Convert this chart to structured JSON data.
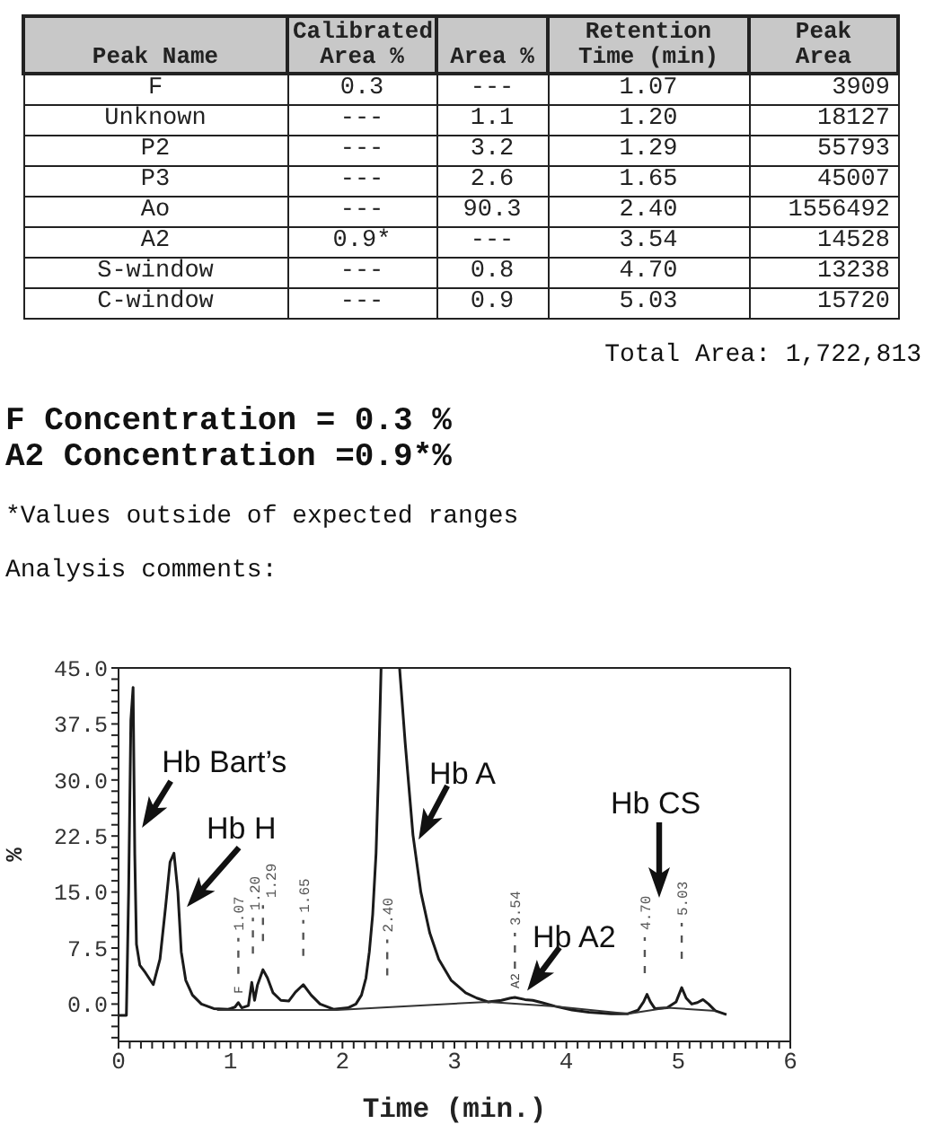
{
  "chart_data": [
    {
      "type": "other",
      "categories": [
        "Peak Name",
        "Calibrated\nArea %",
        "Area %",
        "Retention\nTime (min)",
        "Peak\nArea"
      ],
      "cell_labels": [
        [
          "F",
          "0.3",
          "---",
          "1.07",
          "3909"
        ],
        [
          "Unknown",
          "---",
          "1.1",
          "1.20",
          "18127"
        ],
        [
          "P2",
          "---",
          "3.2",
          "1.29",
          "55793"
        ],
        [
          "P3",
          "---",
          "2.6",
          "1.65",
          "45007"
        ],
        [
          "Ao",
          "---",
          "90.3",
          "2.40",
          "1556492"
        ],
        [
          "A2",
          "0.9*",
          "---",
          "3.54",
          "14528"
        ],
        [
          "S-window",
          "---",
          "0.8",
          "4.70",
          "13238"
        ],
        [
          "C-window",
          "---",
          "0.9",
          "5.03",
          "15720"
        ]
      ],
      "annotations": [
        "Total Area: 1,722,813",
        "F Concentration = 0.3 %",
        "A2 Concentration =0.9*%",
        "*Values outside of expected ranges",
        "Analysis comments:"
      ]
    },
    {
      "type": "line",
      "xlabel": "Time (min.)",
      "ylabel": "%",
      "xlim": [
        0,
        6
      ],
      "xticks": [
        0,
        {
          "value": 0.1,
          "label": null
        },
        {
          "value": 0.2,
          "label": null
        },
        {
          "value": 0.3,
          "label": null
        },
        {
          "value": 0.4,
          "label": null
        },
        {
          "value": 0.5,
          "label": null
        },
        {
          "value": 0.6,
          "label": null
        },
        {
          "value": 0.7,
          "label": null
        },
        {
          "value": 0.8,
          "label": null
        },
        {
          "value": 0.9,
          "label": null
        },
        1,
        {
          "value": 1.1,
          "label": null
        },
        {
          "value": 1.2,
          "label": null
        },
        {
          "value": 1.3,
          "label": null
        },
        {
          "value": 1.4,
          "label": null
        },
        {
          "value": 1.5,
          "label": null
        },
        {
          "value": 1.6,
          "label": null
        },
        {
          "value": 1.7,
          "label": null
        },
        {
          "value": 1.8,
          "label": null
        },
        {
          "value": 1.9,
          "label": null
        },
        2,
        {
          "value": 2.1,
          "label": null
        },
        {
          "value": 2.2,
          "label": null
        },
        {
          "value": 2.3,
          "label": null
        },
        {
          "value": 2.4,
          "label": null
        },
        {
          "value": 2.5,
          "label": null
        },
        {
          "value": 2.6,
          "label": null
        },
        {
          "value": 2.7,
          "label": null
        },
        {
          "value": 2.8,
          "label": null
        },
        {
          "value": 2.9,
          "label": null
        },
        3,
        {
          "value": 3.1,
          "label": null
        },
        {
          "value": 3.2,
          "label": null
        },
        {
          "value": 3.3,
          "label": null
        },
        {
          "value": 3.4,
          "label": null
        },
        {
          "value": 3.5,
          "label": null
        },
        {
          "value": 3.6,
          "label": null
        },
        {
          "value": 3.7,
          "label": null
        },
        {
          "value": 3.8,
          "label": null
        },
        {
          "value": 3.9,
          "label": null
        },
        4,
        {
          "value": 4.1,
          "label": null
        },
        {
          "value": 4.2,
          "label": null
        },
        {
          "value": 4.3,
          "label": null
        },
        {
          "value": 4.4,
          "label": null
        },
        {
          "value": 4.5,
          "label": null
        },
        {
          "value": 4.6,
          "label": null
        },
        {
          "value": 4.7,
          "label": null
        },
        {
          "value": 4.8,
          "label": null
        },
        {
          "value": 4.9,
          "label": null
        },
        5,
        {
          "value": 5.1,
          "label": null
        },
        {
          "value": 5.2,
          "label": null
        },
        {
          "value": 5.3,
          "label": null
        },
        {
          "value": 5.4,
          "label": null
        },
        {
          "value": 5.5,
          "label": null
        },
        {
          "value": 5.6,
          "label": null
        },
        {
          "value": 5.7,
          "label": null
        },
        {
          "value": 5.8,
          "label": null
        },
        {
          "value": 5.9,
          "label": null
        },
        6
      ],
      "ylim": [
        -5,
        45
      ],
      "yticks": [
        {
          "value": -4.5,
          "label": null
        },
        {
          "value": -3,
          "label": null
        },
        {
          "value": -1.5,
          "label": null
        },
        {
          "value": 0,
          "label": "0.0"
        },
        {
          "value": 1.5,
          "label": null
        },
        {
          "value": 3,
          "label": null
        },
        {
          "value": 4.5,
          "label": null
        },
        {
          "value": 6,
          "label": null
        },
        7.5,
        {
          "value": 9,
          "label": null
        },
        {
          "value": 10.5,
          "label": null
        },
        {
          "value": 12,
          "label": null
        },
        {
          "value": 13.5,
          "label": null
        },
        {
          "value": 15,
          "label": "15.0"
        },
        {
          "value": 16.5,
          "label": null
        },
        {
          "value": 18,
          "label": null
        },
        {
          "value": 19.5,
          "label": null
        },
        {
          "value": 21,
          "label": null
        },
        22.5,
        {
          "value": 24,
          "label": null
        },
        {
          "value": 25.5,
          "label": null
        },
        {
          "value": 27,
          "label": null
        },
        {
          "value": 28.5,
          "label": null
        },
        {
          "value": 30,
          "label": "30.0"
        },
        {
          "value": 31.5,
          "label": null
        },
        {
          "value": 33,
          "label": null
        },
        {
          "value": 34.5,
          "label": null
        },
        {
          "value": 36,
          "label": null
        },
        37.5,
        {
          "value": 39,
          "label": null
        },
        {
          "value": 40.5,
          "label": null
        },
        {
          "value": 42,
          "label": null
        },
        {
          "value": 43.5,
          "label": null
        },
        {
          "value": 45,
          "label": "45.0"
        }
      ],
      "series": [
        {
          "color": "#1a1a1a",
          "x": [
            0,
            0.07,
            0.09,
            0.11,
            0.13,
            0.145,
            0.16,
            0.19,
            0.24,
            0.31,
            0.37,
            0.42,
            0.46,
            0.495,
            0.53,
            0.56,
            0.6,
            0.66,
            0.74,
            0.85,
            0.98,
            1.04,
            1.07,
            1.1,
            1.16,
            1.19,
            1.215,
            1.24,
            1.29,
            1.33,
            1.38,
            1.45,
            1.52,
            1.58,
            1.65,
            1.72,
            1.8,
            1.92,
            2.05,
            2.12,
            2.17,
            2.21,
            2.24,
            2.27,
            2.3,
            2.32,
            2.345,
            2.4,
            2.51,
            2.56,
            2.63,
            2.7,
            2.78,
            2.86,
            2.97,
            3.1,
            3.2,
            3.3,
            3.42,
            3.5,
            3.54,
            3.63,
            3.7,
            3.78,
            3.9,
            4.05,
            4.2,
            4.4,
            4.55,
            4.64,
            4.69,
            4.72,
            4.75,
            4.79,
            4.9,
            4.98,
            5.03,
            5.07,
            5.12,
            5.17,
            5.22,
            5.27,
            5.33,
            5.43
          ],
          "values": [
            -1.5,
            -1.5,
            15,
            38,
            42.4,
            20,
            8,
            5.2,
            4.2,
            2.6,
            6,
            13,
            19,
            20.2,
            15,
            7,
            3.2,
            1.2,
            0,
            -0.6,
            -0.7,
            -0.4,
            0.2,
            -0.5,
            -0.2,
            2.9,
            0.5,
            2.5,
            4.6,
            3.5,
            1.5,
            0.5,
            0.4,
            1.6,
            2.6,
            1.2,
            0,
            -0.7,
            -0.5,
            0,
            1.2,
            3.5,
            7,
            12,
            20.2,
            30,
            45,
            null,
            45,
            35,
            22.6,
            15,
            9.5,
            6,
            3.2,
            1.5,
            0.8,
            0.3,
            0.5,
            0.8,
            0.9,
            0.6,
            0.5,
            0.2,
            -0.3,
            -0.8,
            -1.1,
            -1.3,
            -1.3,
            -0.8,
            0.3,
            1.3,
            0.3,
            -0.6,
            -0.5,
            0.3,
            2.2,
            0.8,
            0,
            0.2,
            0.6,
            0,
            -0.9,
            -1.4
          ]
        },
        {
          "color": "#333333",
          "x": [
            0.88,
            1.95,
            3.3,
            3.9,
            4.55,
            4.9,
            5.33
          ],
          "values": [
            -0.8,
            -0.8,
            0.3,
            -0.3,
            -1.3,
            -0.5,
            -0.9
          ]
        }
      ],
      "ref_lines": [
        {
          "axis": "x",
          "value": 1.07,
          "label": "1.07",
          "line_style": "dashed",
          "color": "#555555"
        },
        {
          "axis": "x",
          "value": 1.2,
          "label": "1.20",
          "line_style": "dashed",
          "color": "#555555"
        },
        {
          "axis": "x",
          "value": 1.29,
          "label": "1.29",
          "line_style": "dashed",
          "color": "#555555"
        },
        {
          "axis": "x",
          "value": 1.65,
          "label": "1.65",
          "line_style": "dashed",
          "color": "#555555"
        },
        {
          "axis": "x",
          "value": 2.4,
          "label": "2.40",
          "line_style": "dashed",
          "color": "#555555"
        },
        {
          "axis": "x",
          "value": 3.54,
          "label": "3.54",
          "line_style": "dashed",
          "color": "#555555"
        },
        {
          "axis": "x",
          "value": 4.7,
          "label": "4.70",
          "line_style": "dashed",
          "color": "#555555"
        },
        {
          "axis": "x",
          "value": 5.03,
          "label": "5.03",
          "line_style": "dashed",
          "color": "#555555"
        }
      ],
      "annotations": [
        {
          "text": "Hb Bart’s",
          "x": 0.21,
          "y": 23.6
        },
        {
          "text": "Hb H",
          "x": 0.61,
          "y": 13
        },
        {
          "text": "Hb A",
          "x": 2.68,
          "y": 22
        },
        {
          "text": "Hb A2",
          "x": 3.65,
          "y": 1.8
        },
        "Hb CS",
        {
          "text": "F",
          "x": 1.07,
          "y": 0.2
        },
        {
          "text": "A2",
          "x": 3.54,
          "y": 0.9
        }
      ]
    }
  ]
}
